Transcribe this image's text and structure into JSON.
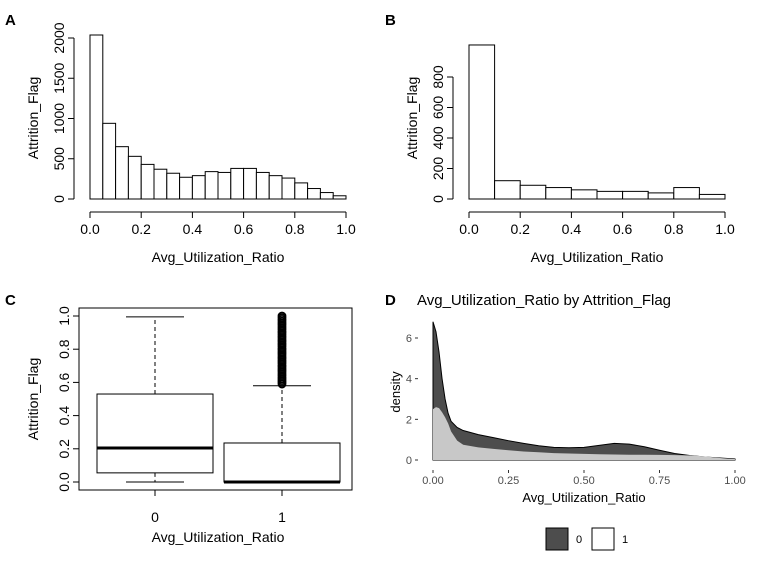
{
  "panels": {
    "A": {
      "letter": "A",
      "ylabel": "Attrition_Flag",
      "xlabel": "Avg_Utilization_Ratio"
    },
    "B": {
      "letter": "B",
      "ylabel": "Attrition_Flag",
      "xlabel": "Avg_Utilization_Ratio"
    },
    "C": {
      "letter": "C",
      "ylabel": "Attrition_Flag",
      "xlabel": "Avg_Utilization_Ratio"
    },
    "D": {
      "letter": "D",
      "title": "Avg_Utilization_Ratio  by  Attrition_Flag",
      "ylabel": "density",
      "xlabel": "Avg_Utilization_Ratio"
    }
  },
  "colors": {
    "dark": "#4d4d4d",
    "light": "#c8c8c8",
    "black": "#000000"
  },
  "chart_data": [
    {
      "panel": "A",
      "type": "bar",
      "subtype": "histogram",
      "bin_edges": [
        0,
        0.05,
        0.1,
        0.15,
        0.2,
        0.25,
        0.3,
        0.35,
        0.4,
        0.45,
        0.5,
        0.55,
        0.6,
        0.65,
        0.7,
        0.75,
        0.8,
        0.85,
        0.9,
        0.95,
        1.0
      ],
      "values": [
        2040,
        940,
        650,
        530,
        430,
        370,
        320,
        270,
        290,
        340,
        330,
        380,
        380,
        330,
        290,
        260,
        200,
        130,
        80,
        40
      ],
      "xlim": [
        0,
        1
      ],
      "ylim": [
        0,
        2000
      ],
      "xticks": [
        "0.0",
        "0.2",
        "0.4",
        "0.6",
        "0.8",
        "1.0"
      ],
      "yticks": [
        "0",
        "500",
        "1000",
        "1500",
        "2000"
      ],
      "xlabel": "Avg_Utilization_Ratio",
      "ylabel": "Attrition_Flag"
    },
    {
      "panel": "B",
      "type": "bar",
      "subtype": "histogram",
      "bin_edges": [
        0,
        0.1,
        0.2,
        0.3,
        0.4,
        0.5,
        0.6,
        0.7,
        0.8,
        0.9,
        1.0
      ],
      "values": [
        1010,
        120,
        90,
        75,
        60,
        50,
        50,
        40,
        75,
        30
      ],
      "xlim": [
        0,
        1
      ],
      "ylim": [
        0,
        800
      ],
      "xticks": [
        "0.0",
        "0.2",
        "0.4",
        "0.6",
        "0.8",
        "1.0"
      ],
      "yticks": [
        "0",
        "200",
        "400",
        "600",
        "800"
      ],
      "xlabel": "Avg_Utilization_Ratio",
      "ylabel": "Attrition_Flag"
    },
    {
      "panel": "C",
      "type": "box",
      "categories": [
        "0",
        "1"
      ],
      "boxes": [
        {
          "category": "0",
          "min": 0.0,
          "q1": 0.055,
          "median": 0.205,
          "q3": 0.53,
          "max": 0.995,
          "outliers": []
        },
        {
          "category": "1",
          "min": 0.0,
          "q1": 0.0,
          "median": 0.0,
          "q3": 0.235,
          "max": 0.58,
          "outlier_range": [
            0.59,
            1.0
          ]
        }
      ],
      "ylim": [
        0,
        1
      ],
      "yticks": [
        "0.0",
        "0.2",
        "0.4",
        "0.6",
        "0.8",
        "1.0"
      ],
      "xlabel": "Avg_Utilization_Ratio",
      "ylabel": "Attrition_Flag"
    },
    {
      "panel": "D",
      "type": "area",
      "subtype": "density",
      "title": "Avg_Utilization_Ratio  by  Attrition_Flag",
      "xlabel": "Avg_Utilization_Ratio",
      "ylabel": "density",
      "xlim": [
        0,
        1
      ],
      "ylim": [
        0,
        6.5
      ],
      "xticks": [
        "0.00",
        "0.25",
        "0.50",
        "0.75",
        "1.00"
      ],
      "yticks": [
        "0",
        "2",
        "4",
        "6"
      ],
      "legend_position": "bottom",
      "series": [
        {
          "name": "0",
          "color": "#4d4d4d",
          "x": [
            0,
            0.01,
            0.02,
            0.03,
            0.04,
            0.05,
            0.06,
            0.08,
            0.1,
            0.15,
            0.2,
            0.25,
            0.3,
            0.35,
            0.4,
            0.45,
            0.5,
            0.55,
            0.6,
            0.65,
            0.7,
            0.75,
            0.8,
            0.85,
            0.9,
            0.95,
            1.0
          ],
          "y": [
            6.8,
            6.3,
            5.3,
            4.0,
            3.0,
            2.3,
            1.9,
            1.6,
            1.45,
            1.25,
            1.1,
            0.95,
            0.82,
            0.7,
            0.62,
            0.6,
            0.62,
            0.72,
            0.82,
            0.78,
            0.65,
            0.48,
            0.32,
            0.22,
            0.15,
            0.1,
            0.05
          ]
        },
        {
          "name": "1",
          "color": "#c8c8c8",
          "x": [
            0,
            0.01,
            0.02,
            0.03,
            0.04,
            0.05,
            0.06,
            0.08,
            0.1,
            0.15,
            0.2,
            0.25,
            0.3,
            0.35,
            0.4,
            0.45,
            0.5,
            0.55,
            0.6,
            0.65,
            0.7,
            0.75,
            0.8,
            0.85,
            0.9,
            0.95,
            1.0
          ],
          "y": [
            2.5,
            2.6,
            2.55,
            2.35,
            2.1,
            1.8,
            1.4,
            0.95,
            0.75,
            0.62,
            0.55,
            0.48,
            0.42,
            0.38,
            0.34,
            0.32,
            0.3,
            0.28,
            0.27,
            0.26,
            0.26,
            0.25,
            0.24,
            0.23,
            0.18,
            0.1,
            0.04
          ]
        }
      ]
    }
  ]
}
